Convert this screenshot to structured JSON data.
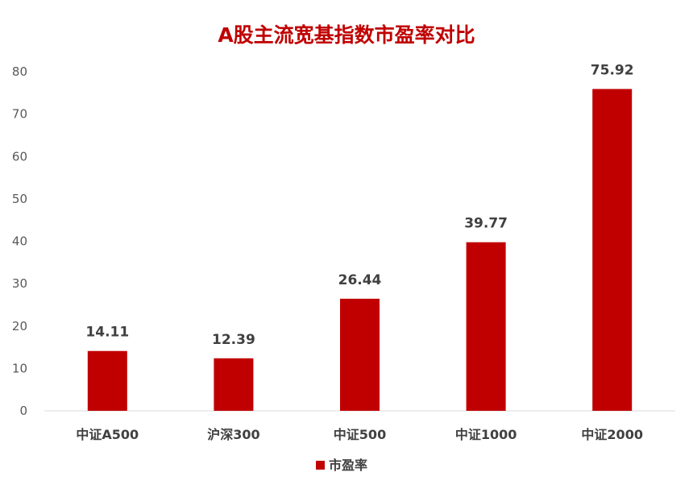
{
  "chart_data": {
    "type": "bar",
    "title": "A股主流宽基指数市盈率对比",
    "categories": [
      "中证A500",
      "沪深300",
      "中证500",
      "中证1000",
      "中证2000"
    ],
    "series": [
      {
        "name": "市盈率",
        "values": [
          14.11,
          12.39,
          26.44,
          39.77,
          75.92
        ]
      }
    ],
    "data_labels": [
      "14.11",
      "12.39",
      "26.44",
      "39.77",
      "75.92"
    ],
    "yticks": [
      "0",
      "10",
      "20",
      "30",
      "40",
      "50",
      "60",
      "70",
      "80"
    ],
    "ylim": [
      0,
      80
    ],
    "grid": false,
    "legend_position": "bottom",
    "colors": {
      "bar": "#c00000",
      "title": "#c00000",
      "axis": "#d9d9d9"
    }
  }
}
